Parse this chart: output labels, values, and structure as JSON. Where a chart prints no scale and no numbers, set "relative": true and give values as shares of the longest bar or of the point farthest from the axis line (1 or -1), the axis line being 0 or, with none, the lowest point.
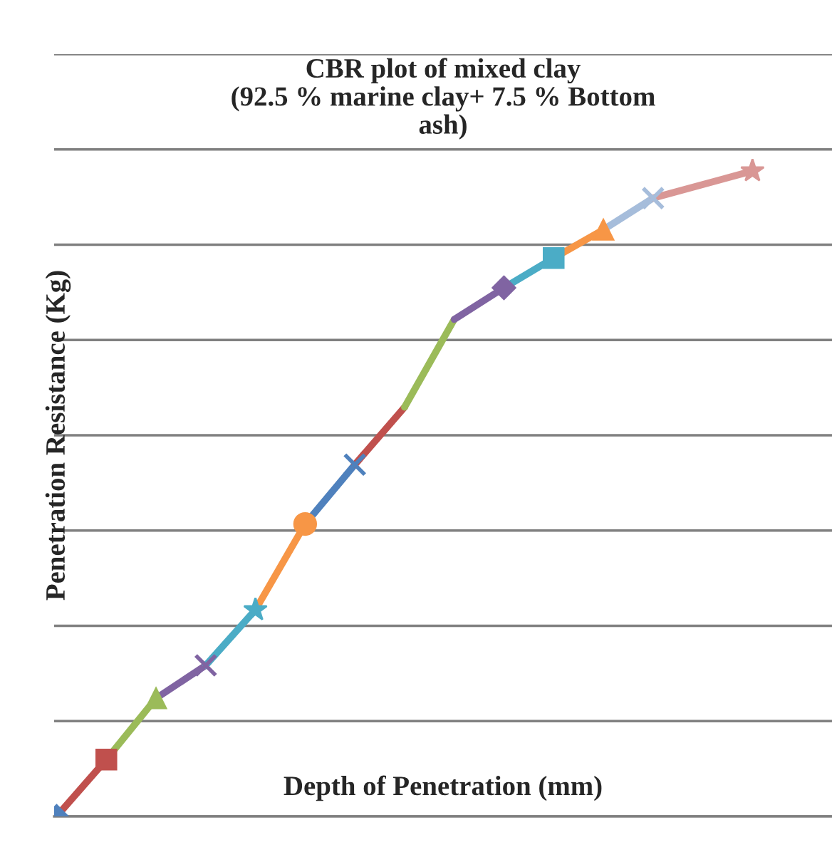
{
  "chart_data": {
    "type": "line",
    "title": "CBR plot of mixed clay\n(92.5 % marine clay+ 7.5 % Bottom\nash)",
    "xlabel": "Depth of Penetration (mm)",
    "ylabel": "Penetration Resistance (Kg)",
    "relative": true,
    "grid": "y",
    "legend": false,
    "tick_labels": false,
    "categories": [
      null,
      null,
      null,
      null,
      null,
      null,
      null,
      null,
      null,
      null,
      null,
      null,
      null,
      null,
      null
    ],
    "series": [
      {
        "color": "#4f81bd",
        "marker": "diamond",
        "values": [
          0,
          null,
          null,
          null,
          null,
          null,
          null,
          null,
          null,
          null,
          null,
          null,
          null,
          null,
          null
        ]
      },
      {
        "color": "#c0504d",
        "marker": "square",
        "values": [
          0,
          0.088,
          null,
          null,
          null,
          null,
          null,
          null,
          null,
          null,
          null,
          null,
          null,
          null,
          null
        ]
      },
      {
        "color": "#9bbb59",
        "marker": "triangle",
        "values": [
          null,
          0.088,
          0.183,
          null,
          null,
          null,
          null,
          null,
          null,
          null,
          null,
          null,
          null,
          null,
          null
        ]
      },
      {
        "color": "#8064a2",
        "marker": "cross",
        "values": [
          null,
          null,
          0.183,
          0.234,
          null,
          null,
          null,
          null,
          null,
          null,
          null,
          null,
          null,
          null,
          null
        ]
      },
      {
        "color": "#4bacc6",
        "marker": "star",
        "values": [
          null,
          null,
          null,
          0.234,
          0.32,
          null,
          null,
          null,
          null,
          null,
          null,
          null,
          null,
          null,
          null
        ]
      },
      {
        "color": "#f79646",
        "marker": "circle",
        "values": [
          null,
          null,
          null,
          null,
          0.32,
          0.453,
          null,
          null,
          null,
          null,
          null,
          null,
          null,
          null,
          null
        ]
      },
      {
        "color": "#4f81bd",
        "marker": "cross",
        "values": [
          null,
          null,
          null,
          null,
          null,
          0.453,
          0.545,
          null,
          null,
          null,
          null,
          null,
          null,
          null,
          null
        ]
      },
      {
        "color": "#c0504d",
        "marker": "none",
        "values": [
          null,
          null,
          null,
          null,
          null,
          null,
          0.545,
          0.634,
          null,
          null,
          null,
          null,
          null,
          null,
          null
        ]
      },
      {
        "color": "#9bbb59",
        "marker": "none",
        "values": [
          null,
          null,
          null,
          null,
          null,
          null,
          null,
          0.634,
          0.77,
          null,
          null,
          null,
          null,
          null,
          null
        ]
      },
      {
        "color": "#8064a2",
        "marker": "diamond",
        "values": [
          null,
          null,
          null,
          null,
          null,
          null,
          null,
          null,
          0.77,
          0.819,
          null,
          null,
          null,
          null,
          null
        ]
      },
      {
        "color": "#4bacc6",
        "marker": "square",
        "values": [
          null,
          null,
          null,
          null,
          null,
          null,
          null,
          null,
          null,
          0.819,
          0.865,
          null,
          null,
          null,
          null
        ]
      },
      {
        "color": "#f79646",
        "marker": "triangle",
        "values": [
          null,
          null,
          null,
          null,
          null,
          null,
          null,
          null,
          null,
          null,
          0.865,
          0.909,
          null,
          null,
          null
        ]
      },
      {
        "color": "#a6bddb",
        "marker": "cross",
        "values": [
          null,
          null,
          null,
          null,
          null,
          null,
          null,
          null,
          null,
          null,
          null,
          0.909,
          0.958,
          null,
          null
        ]
      },
      {
        "color": "#d99795",
        "marker": "star",
        "values": [
          null,
          null,
          null,
          null,
          null,
          null,
          null,
          null,
          null,
          null,
          null,
          null,
          0.958,
          null,
          1.0
        ]
      }
    ]
  }
}
